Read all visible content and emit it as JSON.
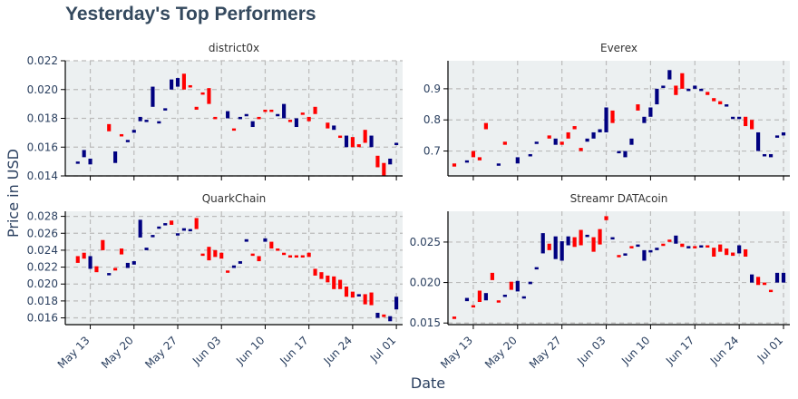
{
  "title": "Yesterday's Top Performers",
  "xlabel": "Date",
  "ylabel": "Price in USD",
  "colors": {
    "up": "#000080",
    "down": "#ff0000",
    "panel_bg": "#ecf0f1",
    "grid": "#bbbbbb"
  },
  "chart_data": [
    {
      "type": "candlestick",
      "title": "district0x",
      "ylim": [
        0.014,
        0.022
      ],
      "yticks": [
        0.014,
        0.016,
        0.018,
        0.02,
        0.022
      ],
      "ytick_labels": [
        "0.014",
        "0.016",
        "0.018",
        "0.020",
        "0.022"
      ],
      "xlim": [
        "2018-05-09",
        "2018-07-02"
      ],
      "xticks": [
        "2018-05-13",
        "2018-05-20",
        "2018-05-27",
        "2018-06-03",
        "2018-06-10",
        "2018-06-17",
        "2018-06-24",
        "2018-07-01"
      ],
      "xtick_labels": [
        "May 13",
        "May 20",
        "May 27",
        "Jun 03",
        "Jun 10",
        "Jun 17",
        "Jun 24",
        "Jul 01"
      ],
      "x_axis_visible": false,
      "dates": [
        "2018-05-11",
        "2018-05-12",
        "2018-05-13",
        "2018-05-16",
        "2018-05-17",
        "2018-05-18",
        "2018-05-19",
        "2018-05-20",
        "2018-05-21",
        "2018-05-22",
        "2018-05-23",
        "2018-05-24",
        "2018-05-25",
        "2018-05-26",
        "2018-05-27",
        "2018-05-28",
        "2018-05-29",
        "2018-05-30",
        "2018-05-31",
        "2018-06-01",
        "2018-06-02",
        "2018-06-04",
        "2018-06-05",
        "2018-06-06",
        "2018-06-07",
        "2018-06-08",
        "2018-06-09",
        "2018-06-10",
        "2018-06-11",
        "2018-06-12",
        "2018-06-13",
        "2018-06-14",
        "2018-06-15",
        "2018-06-16",
        "2018-06-17",
        "2018-06-18",
        "2018-06-20",
        "2018-06-21",
        "2018-06-22",
        "2018-06-23",
        "2018-06-24",
        "2018-06-25",
        "2018-06-26",
        "2018-06-27",
        "2018-06-28",
        "2018-06-29",
        "2018-06-30",
        "2018-07-01"
      ],
      "open": [
        0.0149,
        0.0153,
        0.0148,
        0.0176,
        0.0149,
        0.0169,
        0.0165,
        0.017,
        0.0178,
        0.0178,
        0.0188,
        0.0178,
        0.0186,
        0.02,
        0.0202,
        0.0211,
        0.0203,
        0.0188,
        0.0198,
        0.0201,
        0.0181,
        0.018,
        0.0173,
        0.018,
        0.0182,
        0.0174,
        0.0181,
        0.0186,
        0.0186,
        0.0183,
        0.018,
        0.0179,
        0.0174,
        0.0184,
        0.0181,
        0.0188,
        0.0177,
        0.0172,
        0.0168,
        0.016,
        0.0167,
        0.0162,
        0.0172,
        0.016,
        0.0154,
        0.0149,
        0.0148,
        0.0163
      ],
      "close": [
        0.015,
        0.0158,
        0.0152,
        0.0171,
        0.0157,
        0.0168,
        0.0165,
        0.0172,
        0.0181,
        0.0179,
        0.0202,
        0.0178,
        0.0187,
        0.0207,
        0.0208,
        0.02,
        0.0202,
        0.0186,
        0.0197,
        0.019,
        0.018,
        0.0185,
        0.0172,
        0.0181,
        0.0183,
        0.0178,
        0.018,
        0.0185,
        0.0185,
        0.0183,
        0.019,
        0.0178,
        0.018,
        0.0183,
        0.0178,
        0.0183,
        0.0173,
        0.0175,
        0.0167,
        0.0168,
        0.016,
        0.016,
        0.0163,
        0.0168,
        0.0146,
        0.014,
        0.0152,
        0.0163
      ]
    },
    {
      "type": "candlestick",
      "title": "Everex",
      "ylim": [
        0.62,
        0.99
      ],
      "yticks": [
        0.7,
        0.8,
        0.9
      ],
      "ytick_labels": [
        "0.7",
        "0.8",
        "0.9"
      ],
      "xlim": [
        "2018-05-09",
        "2018-07-02"
      ],
      "xticks": [
        "2018-05-13",
        "2018-05-20",
        "2018-05-27",
        "2018-06-03",
        "2018-06-10",
        "2018-06-17",
        "2018-06-24",
        "2018-07-01"
      ],
      "xtick_labels": [
        "May 13",
        "May 20",
        "May 27",
        "Jun 03",
        "Jun 10",
        "Jun 17",
        "Jun 24",
        "Jul 01"
      ],
      "x_axis_visible": false,
      "dates": [
        "2018-05-10",
        "2018-05-12",
        "2018-05-13",
        "2018-05-14",
        "2018-05-15",
        "2018-05-17",
        "2018-05-18",
        "2018-05-20",
        "2018-05-22",
        "2018-05-23",
        "2018-05-25",
        "2018-05-26",
        "2018-05-27",
        "2018-05-28",
        "2018-05-29",
        "2018-05-30",
        "2018-05-31",
        "2018-06-01",
        "2018-06-02",
        "2018-06-03",
        "2018-06-04",
        "2018-06-05",
        "2018-06-06",
        "2018-06-07",
        "2018-06-08",
        "2018-06-09",
        "2018-06-10",
        "2018-06-11",
        "2018-06-12",
        "2018-06-13",
        "2018-06-14",
        "2018-06-15",
        "2018-06-16",
        "2018-06-17",
        "2018-06-18",
        "2018-06-19",
        "2018-06-20",
        "2018-06-21",
        "2018-06-22",
        "2018-06-23",
        "2018-06-24",
        "2018-06-25",
        "2018-06-26",
        "2018-06-27",
        "2018-06-28",
        "2018-06-29",
        "2018-06-30",
        "2018-07-01"
      ],
      "open": [
        0.66,
        0.67,
        0.7,
        0.68,
        0.79,
        0.66,
        0.73,
        0.66,
        0.69,
        0.73,
        0.75,
        0.72,
        0.73,
        0.76,
        0.78,
        0.71,
        0.73,
        0.74,
        0.76,
        0.76,
        0.83,
        0.7,
        0.68,
        0.72,
        0.85,
        0.79,
        0.81,
        0.85,
        0.91,
        0.93,
        0.91,
        0.95,
        0.9,
        0.9,
        0.9,
        0.89,
        0.87,
        0.86,
        0.85,
        0.81,
        0.81,
        0.81,
        0.8,
        0.7,
        0.69,
        0.68,
        0.75,
        0.75
      ],
      "close": [
        0.65,
        0.67,
        0.68,
        0.67,
        0.77,
        0.66,
        0.72,
        0.68,
        0.69,
        0.73,
        0.74,
        0.74,
        0.72,
        0.74,
        0.77,
        0.7,
        0.74,
        0.76,
        0.77,
        0.84,
        0.79,
        0.7,
        0.7,
        0.74,
        0.83,
        0.81,
        0.84,
        0.9,
        0.91,
        0.96,
        0.88,
        0.9,
        0.9,
        0.91,
        0.9,
        0.88,
        0.86,
        0.85,
        0.85,
        0.81,
        0.81,
        0.78,
        0.77,
        0.76,
        0.69,
        0.69,
        0.75,
        0.76
      ]
    },
    {
      "type": "candlestick",
      "title": "QuarkChain",
      "ylim": [
        0.0152,
        0.0286
      ],
      "yticks": [
        0.016,
        0.018,
        0.02,
        0.022,
        0.024,
        0.026,
        0.028
      ],
      "ytick_labels": [
        "0.016",
        "0.018",
        "0.020",
        "0.022",
        "0.024",
        "0.026",
        "0.028"
      ],
      "xlim": [
        "2018-05-09",
        "2018-07-02"
      ],
      "xticks": [
        "2018-05-13",
        "2018-05-20",
        "2018-05-27",
        "2018-06-03",
        "2018-06-10",
        "2018-06-17",
        "2018-06-24",
        "2018-07-01"
      ],
      "xtick_labels": [
        "May 13",
        "May 20",
        "May 27",
        "Jun 03",
        "Jun 10",
        "Jun 17",
        "Jun 24",
        "Jul 01"
      ],
      "x_axis_visible": true,
      "dates": [
        "2018-05-11",
        "2018-05-12",
        "2018-05-13",
        "2018-05-14",
        "2018-05-15",
        "2018-05-16",
        "2018-05-17",
        "2018-05-18",
        "2018-05-19",
        "2018-05-20",
        "2018-05-21",
        "2018-05-22",
        "2018-05-23",
        "2018-05-24",
        "2018-05-25",
        "2018-05-26",
        "2018-05-27",
        "2018-05-28",
        "2018-05-29",
        "2018-05-30",
        "2018-05-31",
        "2018-06-01",
        "2018-06-02",
        "2018-06-03",
        "2018-06-04",
        "2018-06-05",
        "2018-06-06",
        "2018-06-07",
        "2018-06-08",
        "2018-06-09",
        "2018-06-10",
        "2018-06-11",
        "2018-06-12",
        "2018-06-13",
        "2018-06-14",
        "2018-06-15",
        "2018-06-16",
        "2018-06-17",
        "2018-06-18",
        "2018-06-19",
        "2018-06-20",
        "2018-06-21",
        "2018-06-22",
        "2018-06-23",
        "2018-06-24",
        "2018-06-25",
        "2018-06-26",
        "2018-06-27",
        "2018-06-28",
        "2018-06-29",
        "2018-06-30",
        "2018-07-01"
      ],
      "open": [
        0.0233,
        0.0237,
        0.0218,
        0.0221,
        0.0252,
        0.0212,
        0.0219,
        0.0242,
        0.0219,
        0.0223,
        0.0255,
        0.024,
        0.0257,
        0.0266,
        0.0271,
        0.0275,
        0.0258,
        0.0263,
        0.0264,
        0.0278,
        0.0236,
        0.0244,
        0.024,
        0.0237,
        0.0216,
        0.0219,
        0.0224,
        0.025,
        0.0236,
        0.0233,
        0.025,
        0.025,
        0.0242,
        0.0237,
        0.0234,
        0.0234,
        0.0234,
        0.0237,
        0.0218,
        0.0214,
        0.021,
        0.0209,
        0.0205,
        0.0197,
        0.0191,
        0.0186,
        0.0188,
        0.019,
        0.016,
        0.0164,
        0.0156,
        0.017
      ],
      "close": [
        0.0225,
        0.023,
        0.0233,
        0.0214,
        0.024,
        0.0213,
        0.0216,
        0.0235,
        0.0225,
        0.0227,
        0.0276,
        0.0243,
        0.0258,
        0.0268,
        0.0272,
        0.027,
        0.026,
        0.0266,
        0.0265,
        0.0265,
        0.0234,
        0.0228,
        0.0232,
        0.023,
        0.0214,
        0.0222,
        0.0227,
        0.0253,
        0.0234,
        0.0227,
        0.0254,
        0.0242,
        0.0241,
        0.0236,
        0.0232,
        0.0232,
        0.0233,
        0.0232,
        0.021,
        0.0206,
        0.0202,
        0.0194,
        0.0194,
        0.0185,
        0.0184,
        0.0188,
        0.0176,
        0.0175,
        0.0166,
        0.0161,
        0.0162,
        0.0185
      ]
    },
    {
      "type": "candlestick",
      "title": "Streamr DATAcoin",
      "ylim": [
        0.0148,
        0.0288
      ],
      "yticks": [
        0.015,
        0.02,
        0.025
      ],
      "ytick_labels": [
        "0.015",
        "0.020",
        "0.025"
      ],
      "xlim": [
        "2018-05-09",
        "2018-07-02"
      ],
      "xticks": [
        "2018-05-13",
        "2018-05-20",
        "2018-05-27",
        "2018-06-03",
        "2018-06-10",
        "2018-06-17",
        "2018-06-24",
        "2018-07-01"
      ],
      "xtick_labels": [
        "May 13",
        "May 20",
        "May 27",
        "Jun 03",
        "Jun 10",
        "Jun 17",
        "Jun 24",
        "Jul 01"
      ],
      "x_axis_visible": true,
      "dates": [
        "2018-05-10",
        "2018-05-12",
        "2018-05-13",
        "2018-05-14",
        "2018-05-15",
        "2018-05-16",
        "2018-05-17",
        "2018-05-18",
        "2018-05-19",
        "2018-05-20",
        "2018-05-21",
        "2018-05-22",
        "2018-05-23",
        "2018-05-24",
        "2018-05-25",
        "2018-05-26",
        "2018-05-27",
        "2018-05-28",
        "2018-05-29",
        "2018-05-30",
        "2018-05-31",
        "2018-06-01",
        "2018-06-02",
        "2018-06-03",
        "2018-06-04",
        "2018-06-05",
        "2018-06-06",
        "2018-06-07",
        "2018-06-08",
        "2018-06-09",
        "2018-06-10",
        "2018-06-11",
        "2018-06-12",
        "2018-06-13",
        "2018-06-14",
        "2018-06-15",
        "2018-06-16",
        "2018-06-17",
        "2018-06-18",
        "2018-06-19",
        "2018-06-20",
        "2018-06-21",
        "2018-06-22",
        "2018-06-23",
        "2018-06-24",
        "2018-06-25",
        "2018-06-26",
        "2018-06-27",
        "2018-06-28",
        "2018-06-29",
        "2018-06-30",
        "2018-07-01"
      ],
      "open": [
        0.0158,
        0.0177,
        0.0172,
        0.019,
        0.0178,
        0.0212,
        0.0178,
        0.0184,
        0.0201,
        0.0189,
        0.0182,
        0.0198,
        0.0219,
        0.0236,
        0.0248,
        0.0229,
        0.0227,
        0.0246,
        0.0256,
        0.0265,
        0.0257,
        0.0256,
        0.0266,
        0.0282,
        0.0254,
        0.0234,
        0.0235,
        0.0245,
        0.0247,
        0.0227,
        0.0239,
        0.024,
        0.0248,
        0.0253,
        0.0248,
        0.0248,
        0.0243,
        0.0245,
        0.0246,
        0.0246,
        0.0243,
        0.0247,
        0.0242,
        0.0237,
        0.0236,
        0.0241,
        0.02,
        0.0207,
        0.02,
        0.0191,
        0.02,
        0.02
      ],
      "close": [
        0.0155,
        0.0181,
        0.0171,
        0.0176,
        0.0187,
        0.0203,
        0.0176,
        0.0185,
        0.0191,
        0.0202,
        0.0183,
        0.0201,
        0.0219,
        0.0261,
        0.024,
        0.0257,
        0.0251,
        0.0257,
        0.0244,
        0.0246,
        0.0259,
        0.0238,
        0.0247,
        0.0277,
        0.0256,
        0.0233,
        0.0236,
        0.0244,
        0.0247,
        0.024,
        0.024,
        0.0243,
        0.0246,
        0.0252,
        0.0258,
        0.0244,
        0.0245,
        0.0244,
        0.0246,
        0.0245,
        0.0232,
        0.0238,
        0.0234,
        0.0233,
        0.0246,
        0.0232,
        0.021,
        0.0197,
        0.0197,
        0.019,
        0.0212,
        0.0212
      ]
    }
  ]
}
